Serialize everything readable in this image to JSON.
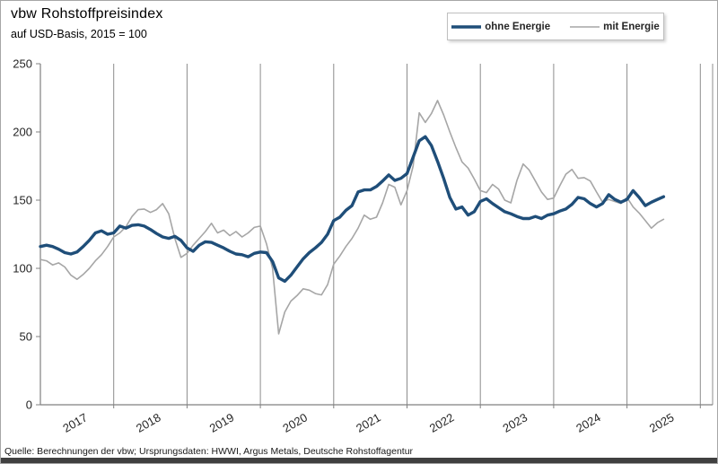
{
  "header": {
    "title": "vbw Rohstoffpreisindex",
    "subtitle": "auf USD-Basis, 2015 = 100"
  },
  "legend": {
    "items": [
      {
        "label": "ohne Energie",
        "color": "#1f4e79",
        "stroke_width": 3.4
      },
      {
        "label": "mit Energie",
        "color": "#a6a6a6",
        "stroke_width": 1.6
      }
    ]
  },
  "footer": {
    "source": "Quelle: Berechnungen der vbw; Ursprungsdaten: HWWI, Argus Metals, Deutsche Rohstoffagentur"
  },
  "colors": {
    "series_blue": "#1f4e79",
    "series_gray": "#a6a6a6",
    "gridline": "#8c8c8c",
    "axis": "#808080",
    "tick_text": "#262626"
  },
  "chart_data": {
    "type": "line",
    "title": "vbw Rohstoffpreisindex",
    "subtitle": "auf USD-Basis, 2015 = 100",
    "x_unit": "month",
    "x_start": "2017-01",
    "x_end": "2025-07",
    "year_labels": [
      "2017",
      "2018",
      "2019",
      "2020",
      "2021",
      "2022",
      "2023",
      "2024",
      "2025"
    ],
    "y_ticks": [
      0,
      50,
      100,
      150,
      200,
      250
    ],
    "ylim": [
      0,
      250
    ],
    "grid": "vertical-year-lines",
    "legend_position": "top-right",
    "series": [
      {
        "name": "ohne Energie",
        "color": "#1f4e79",
        "stroke_width": 3.4,
        "values": [
          116,
          117,
          116,
          114,
          111.5,
          110.5,
          112,
          116,
          120.5,
          126,
          127.5,
          125,
          126,
          131,
          129.5,
          131.5,
          132,
          131,
          128.5,
          125.5,
          123,
          122,
          123.5,
          120.5,
          115,
          112.5,
          117,
          119.5,
          119,
          117,
          115,
          112.5,
          110.5,
          110,
          108.5,
          111,
          112,
          111.5,
          105,
          93,
          90.5,
          95,
          101,
          107,
          111.5,
          115,
          119,
          125,
          135,
          137.5,
          142.5,
          146,
          156,
          157.5,
          157.5,
          160,
          164,
          168.5,
          164.5,
          166,
          169.5,
          181.5,
          193.5,
          196.5,
          190,
          178.5,
          166,
          152,
          143.5,
          145,
          139,
          141.5,
          149,
          151,
          147.5,
          144.5,
          141.5,
          140,
          138,
          136.5,
          136.5,
          138,
          136.5,
          139,
          140,
          142,
          143.5,
          147,
          152,
          151,
          147.5,
          145,
          147.5,
          154,
          150.5,
          148.5,
          150.5,
          157,
          152,
          146,
          148.5,
          150.5,
          152.5
        ]
      },
      {
        "name": "mit Energie",
        "color": "#a6a6a6",
        "stroke_width": 1.6,
        "values": [
          106.5,
          105.5,
          102.5,
          104,
          101,
          95,
          92,
          95.5,
          100,
          105.5,
          110,
          116,
          123,
          126,
          130.5,
          138,
          143,
          143.5,
          141,
          143,
          147.5,
          140,
          122,
          108,
          111,
          117,
          122,
          127,
          133,
          126,
          128,
          124,
          127,
          123,
          126,
          130,
          131,
          118,
          100,
          52,
          68,
          76,
          80,
          85,
          84,
          81.5,
          80.5,
          88,
          103,
          109,
          116,
          122,
          129.5,
          139,
          136,
          137.5,
          148,
          161.5,
          159.5,
          146.5,
          157,
          175,
          214,
          207,
          213.5,
          223,
          212.5,
          200,
          188.5,
          178,
          173.5,
          165.5,
          157,
          155.5,
          161.5,
          158,
          150,
          148,
          164.5,
          176.5,
          172,
          164,
          156,
          150.5,
          151.5,
          160.5,
          169,
          172.5,
          166,
          166.5,
          164,
          156,
          148.5,
          150.5,
          149,
          147.5,
          152,
          145,
          140.5,
          135,
          129.5,
          133.5,
          136
        ]
      }
    ]
  }
}
